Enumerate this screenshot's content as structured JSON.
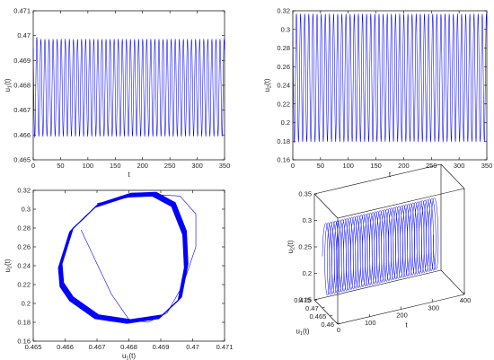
{
  "chart_data": [
    {
      "id": "p1",
      "type": "line",
      "title": "",
      "xlabel": "t",
      "ylabel": {
        "main": "u",
        "sub": "1",
        "tail": "(t)"
      },
      "xlim": [
        0,
        350
      ],
      "ylim": [
        0.465,
        0.471
      ],
      "xticks": [
        "0",
        "50",
        "100",
        "150",
        "200",
        "250",
        "300",
        "350"
      ],
      "yticks": [
        "0.465",
        "0.466",
        "0.467",
        "0.468",
        "0.469",
        "0.47",
        "0.471"
      ],
      "series": [
        {
          "color": "#0000ff",
          "period": 7.45,
          "t0": 0,
          "t1": 350,
          "min": 0.46595,
          "max": 0.46985,
          "start": 0.4662,
          "first_peak": 0.47015,
          "first_trough": 0.4659
        }
      ]
    },
    {
      "id": "p2",
      "type": "line",
      "title": "",
      "xlabel": "t",
      "ylabel": {
        "main": "u",
        "sub": "2",
        "tail": "(t)"
      },
      "xlim": [
        0,
        350
      ],
      "ylim": [
        0.16,
        0.32
      ],
      "xticks": [
        "0",
        "50",
        "100",
        "150",
        "200",
        "250",
        "300",
        "350"
      ],
      "yticks": [
        "0.16",
        "0.18",
        "0.2",
        "0.22",
        "0.24",
        "0.26",
        "0.28",
        "0.3",
        "0.32"
      ],
      "series": [
        {
          "color": "#0000ff",
          "period": 7.45,
          "t0": 0,
          "t1": 350,
          "min": 0.1795,
          "max": 0.3165,
          "start": 0.305,
          "first_peak": 0.318,
          "first_trough": 0.178
        }
      ]
    },
    {
      "id": "p3",
      "type": "line",
      "title": "",
      "xlabel": {
        "main": "u",
        "sub": "1",
        "tail": "(t)"
      },
      "ylabel": {
        "main": "u",
        "sub": "2",
        "tail": "(t)"
      },
      "xlim": [
        0.465,
        0.471
      ],
      "ylim": [
        0.16,
        0.32
      ],
      "xticks": [
        "0.465",
        "0.466",
        "0.467",
        "0.468",
        "0.469",
        "0.47",
        "0.471"
      ],
      "yticks": [
        "0.16",
        "0.18",
        "0.2",
        "0.22",
        "0.24",
        "0.26",
        "0.28",
        "0.3",
        "0.32"
      ],
      "series": [
        {
          "color": "#0000ff",
          "orbit_u1": [
            0.46585,
            0.4662,
            0.467,
            0.468,
            0.4688,
            0.4694,
            0.46975,
            0.4698,
            0.4696,
            0.469,
            0.468,
            0.467,
            0.4662,
            0.4659
          ],
          "orbit_u2": [
            0.24,
            0.278,
            0.304,
            0.315,
            0.316,
            0.305,
            0.275,
            0.24,
            0.205,
            0.186,
            0.181,
            0.186,
            0.205,
            0.22
          ],
          "transient_u1": [
            0.4665,
            0.467,
            0.46745,
            0.468,
            0.4686,
            0.4692,
            0.4697,
            0.4701,
            0.4701,
            0.4696,
            0.4685,
            0.467
          ],
          "transient_u2": [
            0.278,
            0.242,
            0.21,
            0.183,
            0.18,
            0.19,
            0.22,
            0.26,
            0.295,
            0.314,
            0.316,
            0.306
          ]
        }
      ]
    },
    {
      "id": "p4",
      "type": "line",
      "title": "",
      "xlabel": "t",
      "ylabel": {
        "main": "u",
        "sub": "1",
        "tail": "(t)"
      },
      "zlabel": {
        "main": "u",
        "sub": "2",
        "tail": "(t)"
      },
      "xlim": [
        0,
        400
      ],
      "ylim": [
        0.46,
        0.475
      ],
      "zlim": [
        0.15,
        0.35
      ],
      "xticks": [
        "0",
        "100",
        "200",
        "300",
        "400"
      ],
      "yticks": [
        "0.46",
        "0.465",
        "0.47",
        "0.475"
      ],
      "zticks": [
        "0.15",
        "0.2",
        "0.25",
        "0.3",
        "0.35"
      ],
      "series": [
        {
          "color": "#0000ff",
          "t0": 0,
          "t1": 350,
          "period": 7.45,
          "u1_min": 0.4659,
          "u1_max": 0.4698,
          "u2_min": 0.18,
          "u2_max": 0.316
        }
      ]
    }
  ]
}
